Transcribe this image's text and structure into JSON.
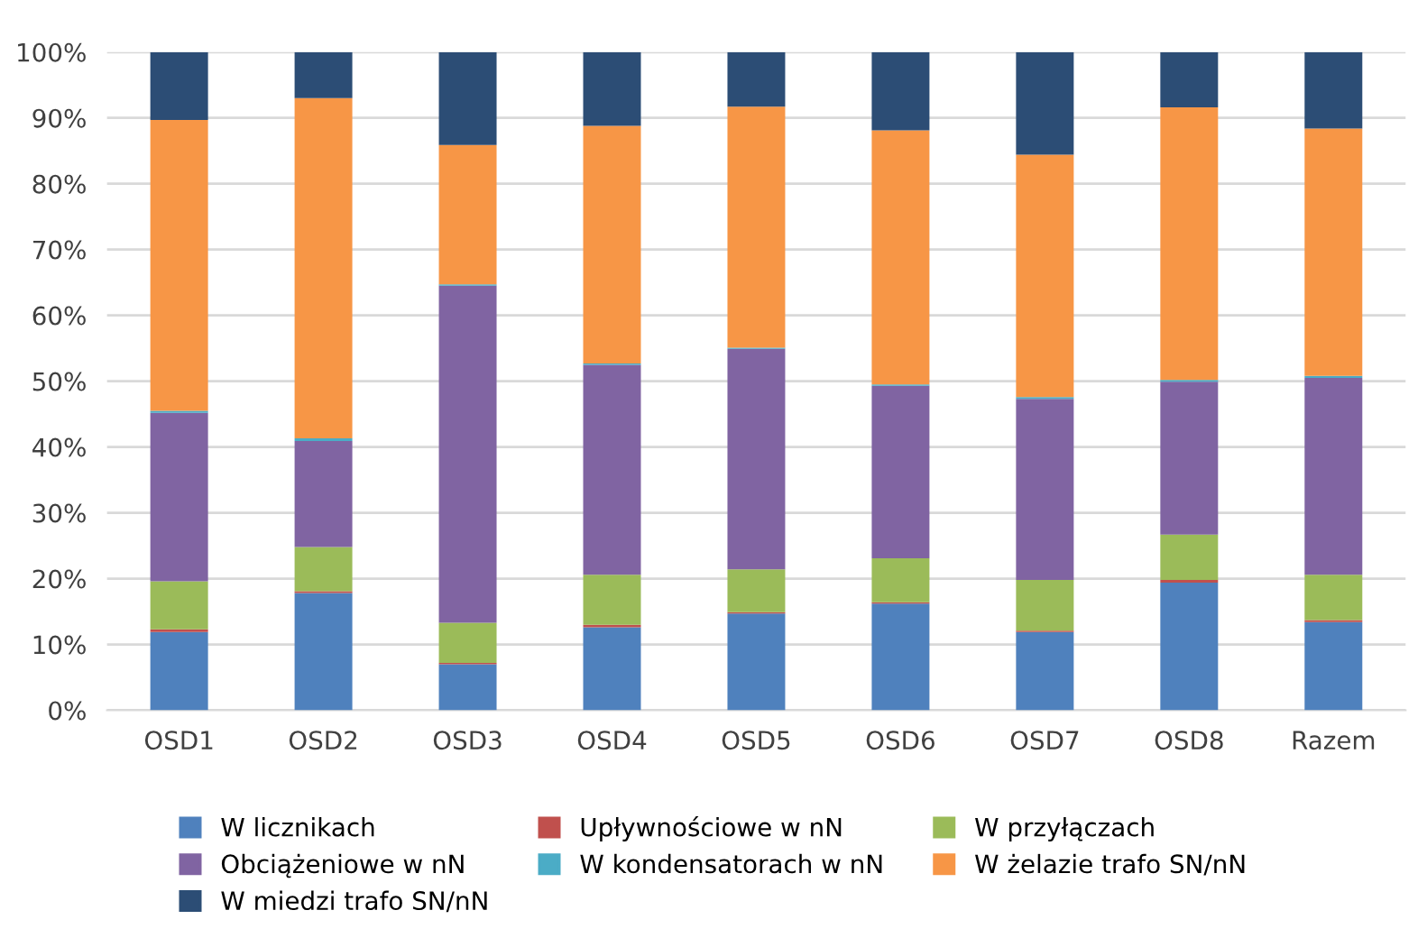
{
  "chart_data": {
    "type": "bar",
    "stacked": true,
    "categories": [
      "OSD1",
      "OSD2",
      "OSD3",
      "OSD4",
      "OSD5",
      "OSD6",
      "OSD7",
      "OSD8",
      "Razem"
    ],
    "series": [
      {
        "name": "W licznikach",
        "color": "#4f81bd",
        "values": [
          11.9,
          17.8,
          7.0,
          12.6,
          14.7,
          16.2,
          11.9,
          19.4,
          13.4
        ]
      },
      {
        "name": "Upływnościowe w nN",
        "color": "#c0504d",
        "values": [
          0.4,
          0.3,
          0.2,
          0.4,
          0.2,
          0.2,
          0.2,
          0.4,
          0.3
        ]
      },
      {
        "name": "W przyłączach",
        "color": "#9bbb59",
        "values": [
          7.3,
          6.7,
          6.1,
          7.6,
          6.5,
          6.7,
          7.7,
          6.9,
          6.9
        ]
      },
      {
        "name": "Obciążeniowe w nN",
        "color": "#8064a2",
        "values": [
          25.6,
          16.1,
          51.2,
          31.9,
          33.5,
          26.2,
          27.5,
          23.2,
          29.9
        ]
      },
      {
        "name": "W kondensatorach w nN",
        "color": "#4bacc6",
        "values": [
          0.3,
          0.4,
          0.2,
          0.2,
          0.2,
          0.2,
          0.3,
          0.3,
          0.3
        ]
      },
      {
        "name": "W żelazie trafo SN/nN",
        "color": "#f79646",
        "values": [
          44.2,
          51.7,
          21.2,
          36.1,
          36.6,
          38.6,
          36.8,
          41.4,
          37.6
        ]
      },
      {
        "name": "W miedzi trafo SN/nN",
        "color": "#2c4d75",
        "values": [
          10.3,
          7.0,
          14.1,
          11.2,
          8.3,
          11.9,
          15.6,
          8.4,
          11.6
        ]
      }
    ],
    "ylim": [
      0,
      100
    ],
    "yticks": [
      {
        "value": 0,
        "label": "0%"
      },
      {
        "value": 10,
        "label": "10%"
      },
      {
        "value": 20,
        "label": "20%"
      },
      {
        "value": 30,
        "label": "30%"
      },
      {
        "value": 40,
        "label": "40%"
      },
      {
        "value": 50,
        "label": "50%"
      },
      {
        "value": 60,
        "label": "60%"
      },
      {
        "value": 70,
        "label": "70%"
      },
      {
        "value": 80,
        "label": "80%"
      },
      {
        "value": 90,
        "label": "90%"
      },
      {
        "value": 100,
        "label": "100%"
      }
    ],
    "grid": "y",
    "legend": "bottom"
  }
}
